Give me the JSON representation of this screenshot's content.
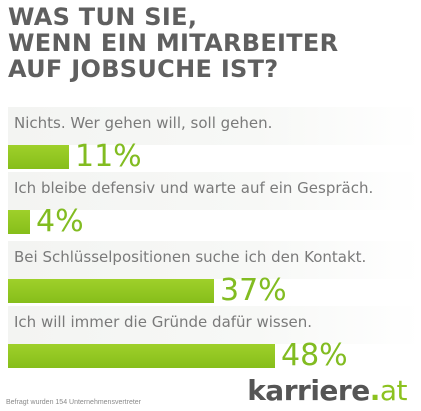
{
  "title_lines": [
    "WAS TUN SIE,",
    "WENN EIN MITARBEITER",
    "AUF JOBSUCHE IST?"
  ],
  "chart_data": {
    "type": "bar",
    "orientation": "horizontal",
    "title": "WAS TUN SIE, WENN EIN MITARBEITER AUF JOBSUCHE IST?",
    "unit": "%",
    "categories": [
      "Nichts. Wer gehen will, soll gehen.",
      "Ich bleibe defensiv und warte auf ein Gespräch.",
      "Bei Schlüsselpositionen suche ich den Kontakt.",
      "Ich will immer die Gründe dafür wissen."
    ],
    "values": [
      11,
      4,
      37,
      48
    ],
    "value_labels": [
      "11%",
      "4%",
      "37%",
      "48%"
    ],
    "xlim": [
      0,
      100
    ],
    "grid": false,
    "legend": "none",
    "bar_color": "#8cc21f"
  },
  "footnote": "Befragt wurden 154 Unternehmensvertreter",
  "brand": {
    "name": "karriere",
    "dot": ".",
    "tld": "at"
  }
}
